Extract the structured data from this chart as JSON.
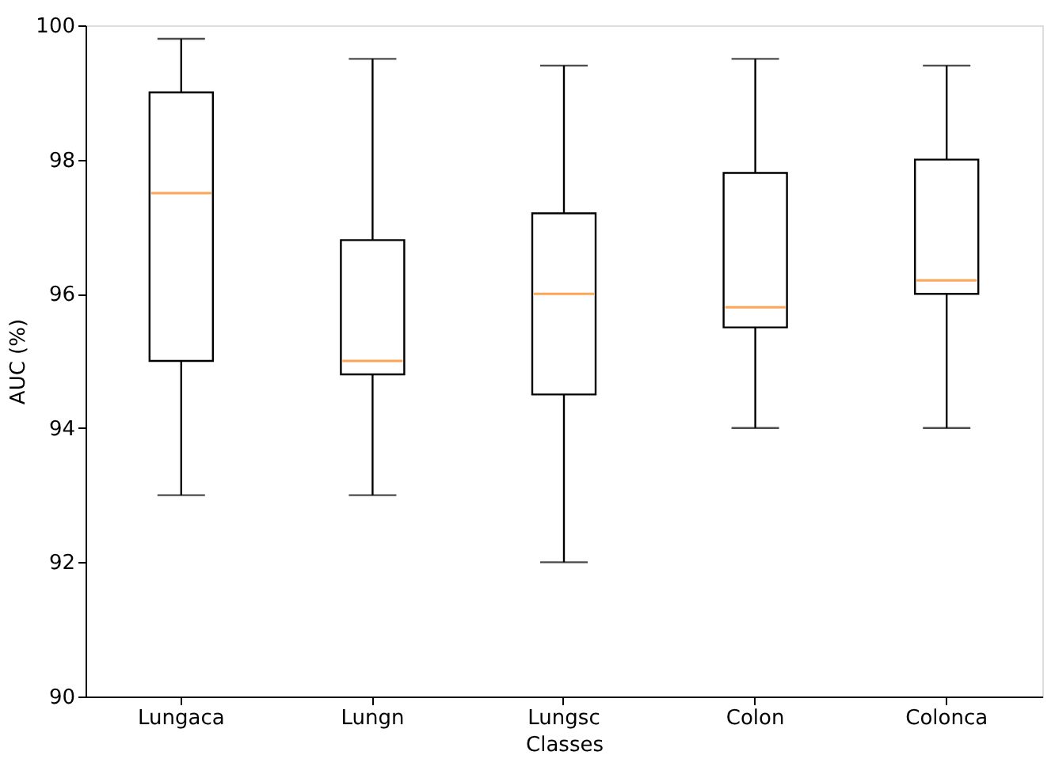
{
  "chart_data": {
    "type": "box",
    "xlabel": "Classes",
    "ylabel": "AUC (%)",
    "categories": [
      "Lungaca",
      "Lungn",
      "Lungsc",
      "Colon",
      "Colonca"
    ],
    "boxes": [
      {
        "low": 93.0,
        "q1": 95.0,
        "median": 97.5,
        "q3": 99.0,
        "high": 99.8
      },
      {
        "low": 93.0,
        "q1": 94.8,
        "median": 95.0,
        "q3": 96.8,
        "high": 99.5
      },
      {
        "low": 92.0,
        "q1": 94.5,
        "median": 96.0,
        "q3": 97.2,
        "high": 99.4
      },
      {
        "low": 94.0,
        "q1": 95.5,
        "median": 95.8,
        "q3": 97.8,
        "high": 99.5
      },
      {
        "low": 94.0,
        "q1": 96.0,
        "median": 96.2,
        "q3": 98.0,
        "high": 99.4
      }
    ],
    "ylim": [
      90,
      100
    ],
    "yticks": [
      90,
      92,
      94,
      96,
      98,
      100
    ],
    "grid": false
  }
}
